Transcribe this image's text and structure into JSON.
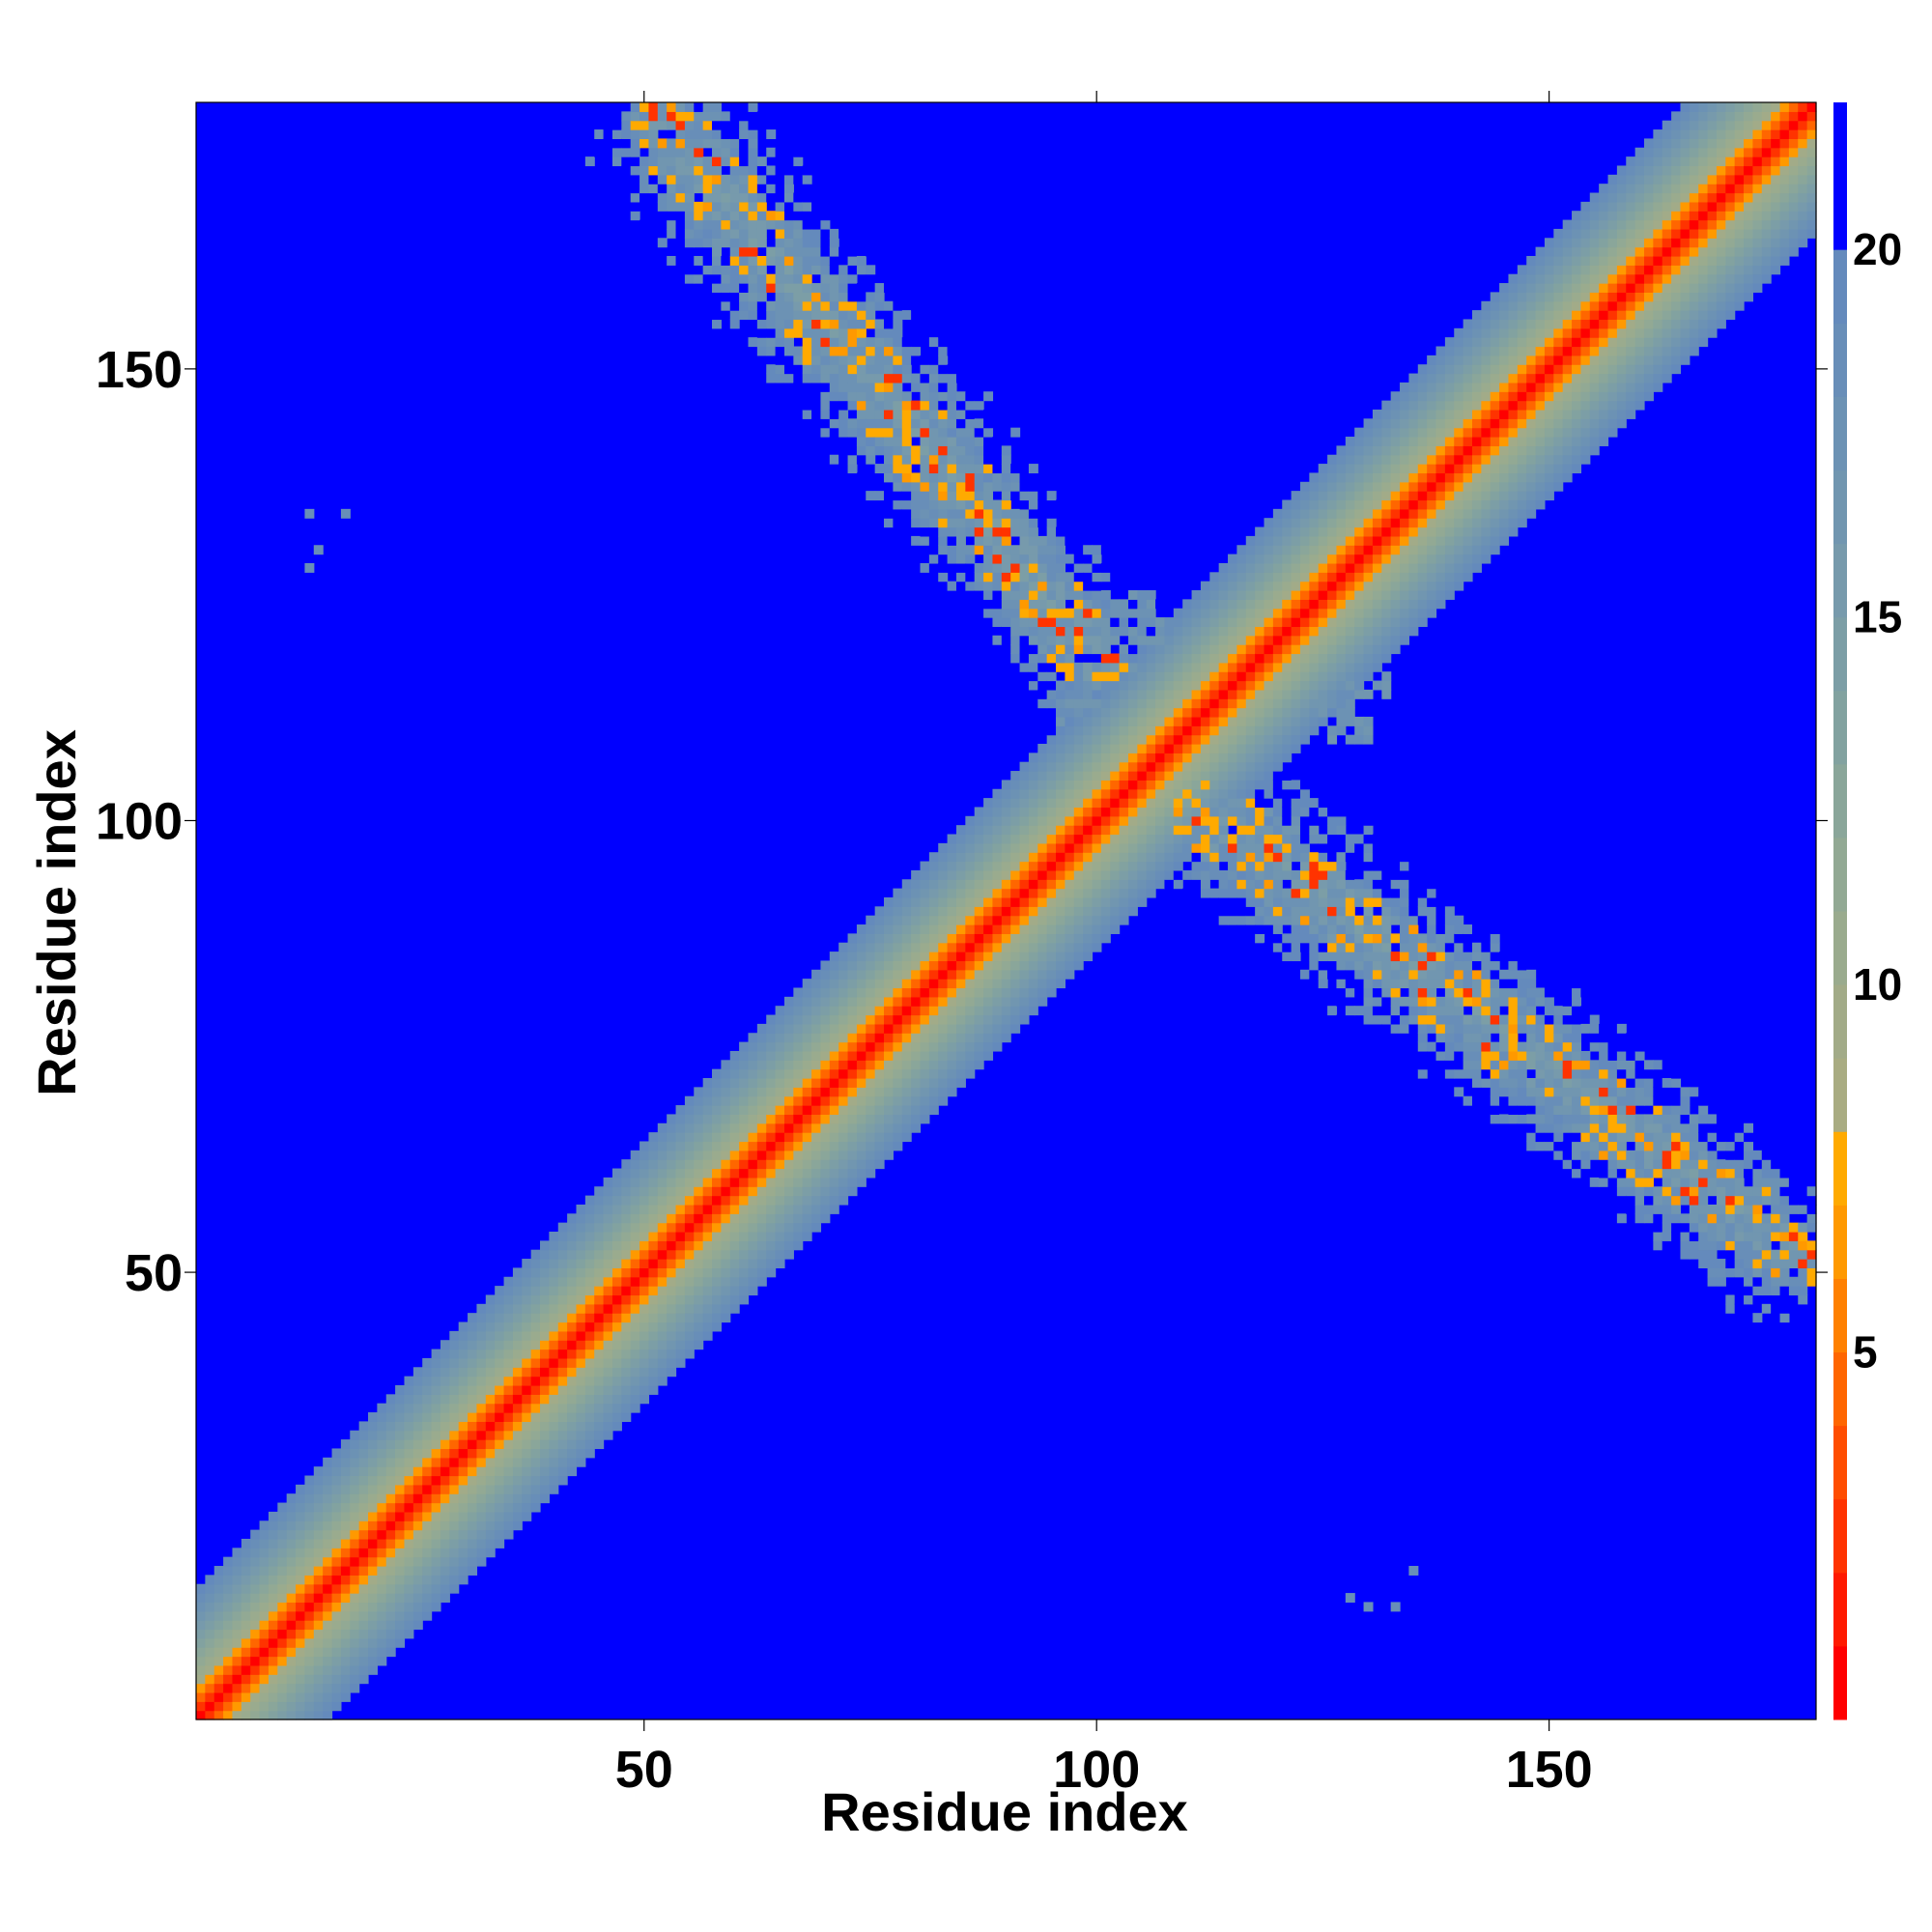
{
  "chart_data": {
    "type": "heatmap",
    "title": "",
    "xlabel": "Residue index",
    "ylabel": "Residue index",
    "xlim": [
      1,
      179
    ],
    "ylim": [
      1,
      179
    ],
    "x_ticks": [
      50,
      100,
      150
    ],
    "y_ticks": [
      50,
      100,
      150
    ],
    "grid": false,
    "colorbar": {
      "min": 0,
      "max": 22,
      "ticks": [
        5,
        10,
        15,
        20
      ],
      "levels": [
        {
          "from": 0,
          "to": 1,
          "color": "#ff0000"
        },
        {
          "from": 1,
          "to": 2,
          "color": "#ff1a00"
        },
        {
          "from": 2,
          "to": 3,
          "color": "#ff3300"
        },
        {
          "from": 3,
          "to": 4,
          "color": "#ff4d00"
        },
        {
          "from": 4,
          "to": 5,
          "color": "#ff6600"
        },
        {
          "from": 5,
          "to": 6,
          "color": "#ff8000"
        },
        {
          "from": 6,
          "to": 7,
          "color": "#ff9900"
        },
        {
          "from": 7,
          "to": 8,
          "color": "#ffaa00"
        },
        {
          "from": 8,
          "to": 9,
          "color": "#a9ac82"
        },
        {
          "from": 9,
          "to": 10,
          "color": "#a2ab88"
        },
        {
          "from": 10,
          "to": 11,
          "color": "#9aab8e"
        },
        {
          "from": 11,
          "to": 12,
          "color": "#92a994"
        },
        {
          "from": 12,
          "to": 13,
          "color": "#8aa69a"
        },
        {
          "from": 13,
          "to": 14,
          "color": "#82a2a0"
        },
        {
          "from": 14,
          "to": 15,
          "color": "#7c9ea6"
        },
        {
          "from": 15,
          "to": 16,
          "color": "#779aac"
        },
        {
          "from": 16,
          "to": 17,
          "color": "#7196b0"
        },
        {
          "from": 17,
          "to": 18,
          "color": "#6c92b4"
        },
        {
          "from": 18,
          "to": 19,
          "color": "#688eb8"
        },
        {
          "from": 19,
          "to": 20,
          "color": "#648abc"
        },
        {
          "from": 20,
          "to": 22,
          "color": "#0000ff"
        }
      ]
    },
    "description_of_values": {
      "diagonal_band": "distance grows with |i-j|: 0-4 red, 4-8 orange, 8-20 green-blue, >20 blue",
      "off_diagonal_regions": [
        {
          "x_range": [
            52,
            100
          ],
          "y_range": [
            118,
            177
          ],
          "min_value": 4
        },
        {
          "x_range": [
            112,
            177
          ],
          "y_range": [
            52,
            101
          ],
          "min_value": 4
        }
      ],
      "isolated_contacts": [
        {
          "x": 13,
          "y": 134,
          "value": 18
        },
        {
          "x": 17,
          "y": 134,
          "value": 18
        },
        {
          "x": 14,
          "y": 130,
          "value": 18
        },
        {
          "x": 13,
          "y": 128,
          "value": 18
        },
        {
          "x": 130,
          "y": 13,
          "value": 18
        },
        {
          "x": 133,
          "y": 13,
          "value": 18
        },
        {
          "x": 135,
          "y": 17,
          "value": 18
        },
        {
          "x": 128,
          "y": 14,
          "value": 18
        }
      ]
    }
  }
}
